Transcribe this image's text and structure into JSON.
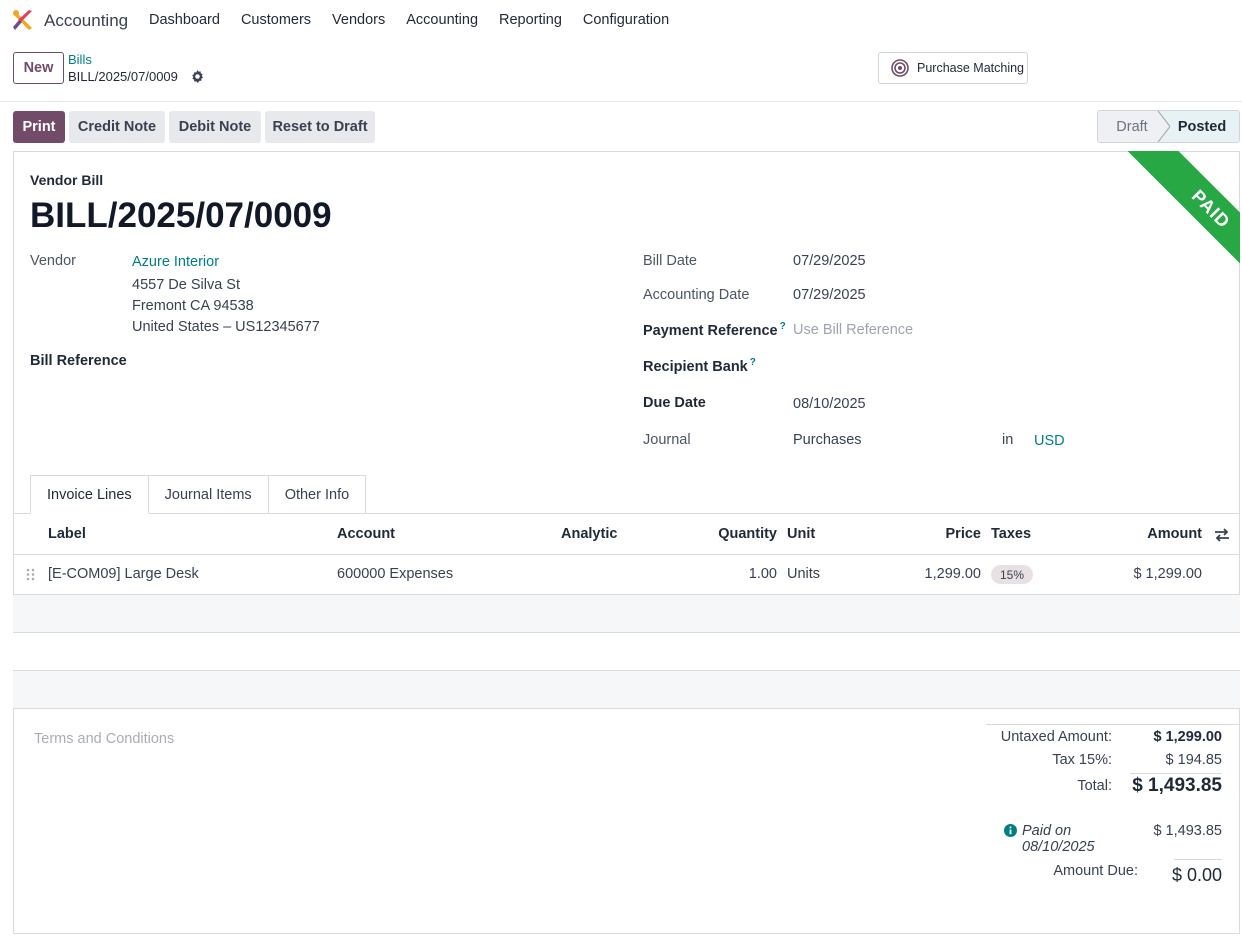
{
  "navbar": {
    "app_name": "Accounting",
    "menu": [
      "Dashboard",
      "Customers",
      "Vendors",
      "Accounting",
      "Reporting",
      "Configuration"
    ]
  },
  "control": {
    "new_label": "New",
    "breadcrumb_parent": "Bills",
    "breadcrumb_current": "BILL/2025/07/0009",
    "purchase_matching_label": "Purchase Matching"
  },
  "actions": {
    "print": "Print",
    "credit_note": "Credit Note",
    "debit_note": "Debit Note",
    "reset_to_draft": "Reset to Draft"
  },
  "status": {
    "draft": "Draft",
    "posted": "Posted",
    "current": "Posted"
  },
  "ribbon": "PAID",
  "form": {
    "doc_type": "Vendor Bill",
    "doc_name": "BILL/2025/07/0009",
    "vendor_label": "Vendor",
    "vendor_name": "Azure Interior",
    "vendor_address": [
      "4557 De Silva St",
      "Fremont CA 94538",
      "United States – US12345677"
    ],
    "bill_reference_label": "Bill Reference",
    "bill_date_label": "Bill Date",
    "bill_date": "07/29/2025",
    "accounting_date_label": "Accounting Date",
    "accounting_date": "07/29/2025",
    "payment_reference_label": "Payment Reference",
    "payment_reference_placeholder": "Use Bill Reference",
    "recipient_bank_label": "Recipient Bank",
    "help_mark": "?",
    "due_date_label": "Due Date",
    "due_date": "08/10/2025",
    "journal_label": "Journal",
    "journal": "Purchases",
    "in_label": "in",
    "currency": "USD"
  },
  "tabs": [
    "Invoice Lines",
    "Journal Items",
    "Other Info"
  ],
  "table": {
    "headers": {
      "label": "Label",
      "account": "Account",
      "analytic": "Analytic",
      "quantity": "Quantity",
      "unit": "Unit",
      "price": "Price",
      "taxes": "Taxes",
      "amount": "Amount"
    },
    "rows": [
      {
        "label": "[E-COM09] Large Desk",
        "account": "600000 Expenses",
        "analytic": "",
        "quantity": "1.00",
        "unit": "Units",
        "price": "1,299.00",
        "taxes": "15%",
        "amount": "$ 1,299.00"
      }
    ]
  },
  "totals": {
    "terms_placeholder": "Terms and Conditions",
    "untaxed_label": "Untaxed Amount:",
    "untaxed_value": "$ 1,299.00",
    "tax_label": "Tax 15%:",
    "tax_value": "$ 194.85",
    "total_label": "Total:",
    "total_value": "$ 1,493.85",
    "paid_label": "Paid on 08/10/2025",
    "paid_value": "$ 1,493.85",
    "amount_due_label": "Amount Due:",
    "amount_due_value": "$ 0.00"
  },
  "colors": {
    "brand": "#714B67",
    "link": "#017e84",
    "ribbon": "#28a745"
  }
}
